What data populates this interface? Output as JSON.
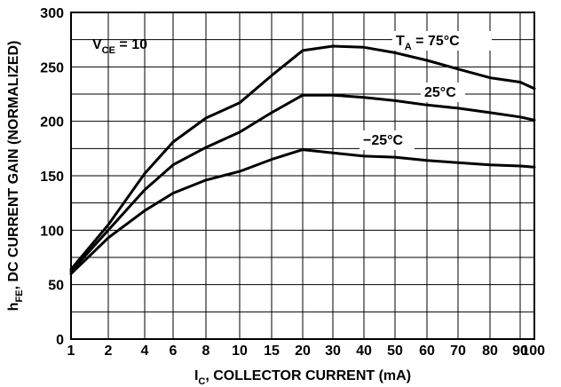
{
  "chart_data": {
    "type": "line",
    "x_categories": [
      "1",
      "2",
      "4",
      "6",
      "8",
      "10",
      "15",
      "20",
      "30",
      "40",
      "50",
      "60",
      "70",
      "80",
      "90",
      "100"
    ],
    "ylim": [
      0,
      300
    ],
    "y_ticks": [
      "0",
      "50",
      "100",
      "150",
      "200",
      "250",
      "300"
    ],
    "grid": true,
    "xlabel_main": "I",
    "xlabel_sub": "C",
    "xlabel_rest": ", COLLECTOR CURRENT (mA)",
    "ylabel_main": "h",
    "ylabel_sub": "FE",
    "ylabel_rest": ", DC CURRENT GAIN (NORMALIZED)",
    "annotation_vce_main": "V",
    "annotation_vce_sub": "CE",
    "annotation_vce_rest": " = 10",
    "series": [
      {
        "label_main": "T",
        "label_sub": "A",
        "label_rest": " = 75°C",
        "values": [
          64,
          105,
          152,
          181,
          203,
          217,
          242,
          265,
          269,
          268,
          263,
          256,
          248,
          240,
          236,
          230
        ]
      },
      {
        "label_main": "25°C",
        "label_sub": "",
        "label_rest": "",
        "values": [
          62,
          100,
          137,
          160,
          176,
          190,
          208,
          224,
          224,
          222,
          219,
          215,
          212,
          208,
          204,
          201
        ]
      },
      {
        "label_main": "−25°C",
        "label_sub": "",
        "label_rest": "",
        "values": [
          60,
          93,
          118,
          134,
          146,
          154,
          165,
          174,
          171,
          168,
          167,
          164,
          162,
          160,
          159,
          158
        ]
      }
    ]
  }
}
